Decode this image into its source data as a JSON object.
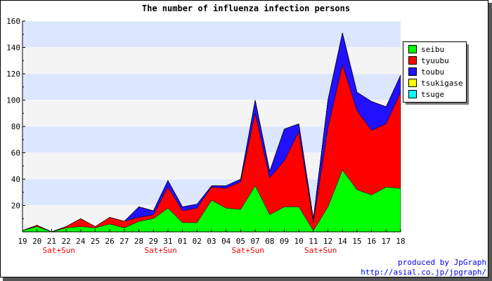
{
  "chart_data": {
    "type": "area",
    "title": "The number of influenza infection persons",
    "xlabel": "",
    "ylabel": "",
    "ylim": [
      0,
      160
    ],
    "yticks": [
      20,
      40,
      60,
      80,
      100,
      120,
      140,
      160
    ],
    "stacked": true,
    "grid": true,
    "legend_position": "right",
    "categories": [
      "19",
      "20",
      "21",
      "22",
      "24",
      "25",
      "26",
      "27",
      "28",
      "29",
      "31",
      "01",
      "02",
      "03",
      "04",
      "05",
      "07",
      "08",
      "09",
      "10",
      "11",
      "12",
      "14",
      "15",
      "16",
      "17",
      "18"
    ],
    "weekend_label": "Sat+Sun",
    "weekend_after_categories": [
      "21",
      "29",
      "05",
      "11"
    ],
    "series": [
      {
        "name": "seibu",
        "color": "#00ff00",
        "values": [
          1,
          4,
          0,
          3,
          4,
          3,
          6,
          3,
          8,
          10,
          18,
          7,
          7,
          24,
          18,
          17,
          35,
          13,
          19,
          19,
          1,
          19,
          47,
          32,
          28,
          34,
          33
        ]
      },
      {
        "name": "tyuubu",
        "color": "#ff0000",
        "values": [
          0,
          1,
          0,
          1,
          6,
          1,
          5,
          5,
          3,
          3,
          16,
          9,
          11,
          10,
          15,
          21,
          55,
          28,
          35,
          57,
          6,
          60,
          80,
          60,
          49,
          48,
          73
        ]
      },
      {
        "name": "toubu",
        "color": "#2211ff",
        "values": [
          0,
          0,
          0,
          0,
          0,
          0,
          0,
          0,
          8,
          3,
          5,
          3,
          3,
          1,
          2,
          2,
          10,
          5,
          24,
          6,
          3,
          21,
          24,
          14,
          22,
          13,
          13
        ]
      },
      {
        "name": "tsukigase",
        "color": "#ffff00",
        "values": [
          0,
          0,
          0,
          0,
          0,
          0,
          0,
          0,
          0,
          0,
          0,
          0,
          0,
          0,
          0,
          0,
          0,
          0,
          0,
          0,
          0,
          0,
          0,
          0,
          0,
          0,
          0
        ]
      },
      {
        "name": "tsuge",
        "color": "#00ffff",
        "values": [
          0,
          0,
          0,
          0,
          0,
          0,
          0,
          0,
          0,
          0,
          0,
          0,
          0,
          0,
          0,
          0,
          0,
          0,
          0,
          0,
          0,
          0,
          0,
          0,
          0,
          0,
          0
        ]
      }
    ],
    "colors": {
      "band_light": "#f4f4f4",
      "band_blue": "#dce6ff",
      "weekend_text": "#ff0000",
      "credit_text": "#0000ff"
    }
  },
  "credit": {
    "line1": "produced by JpGraph",
    "line2": "http://asial.co.jp/jpgraph/"
  }
}
